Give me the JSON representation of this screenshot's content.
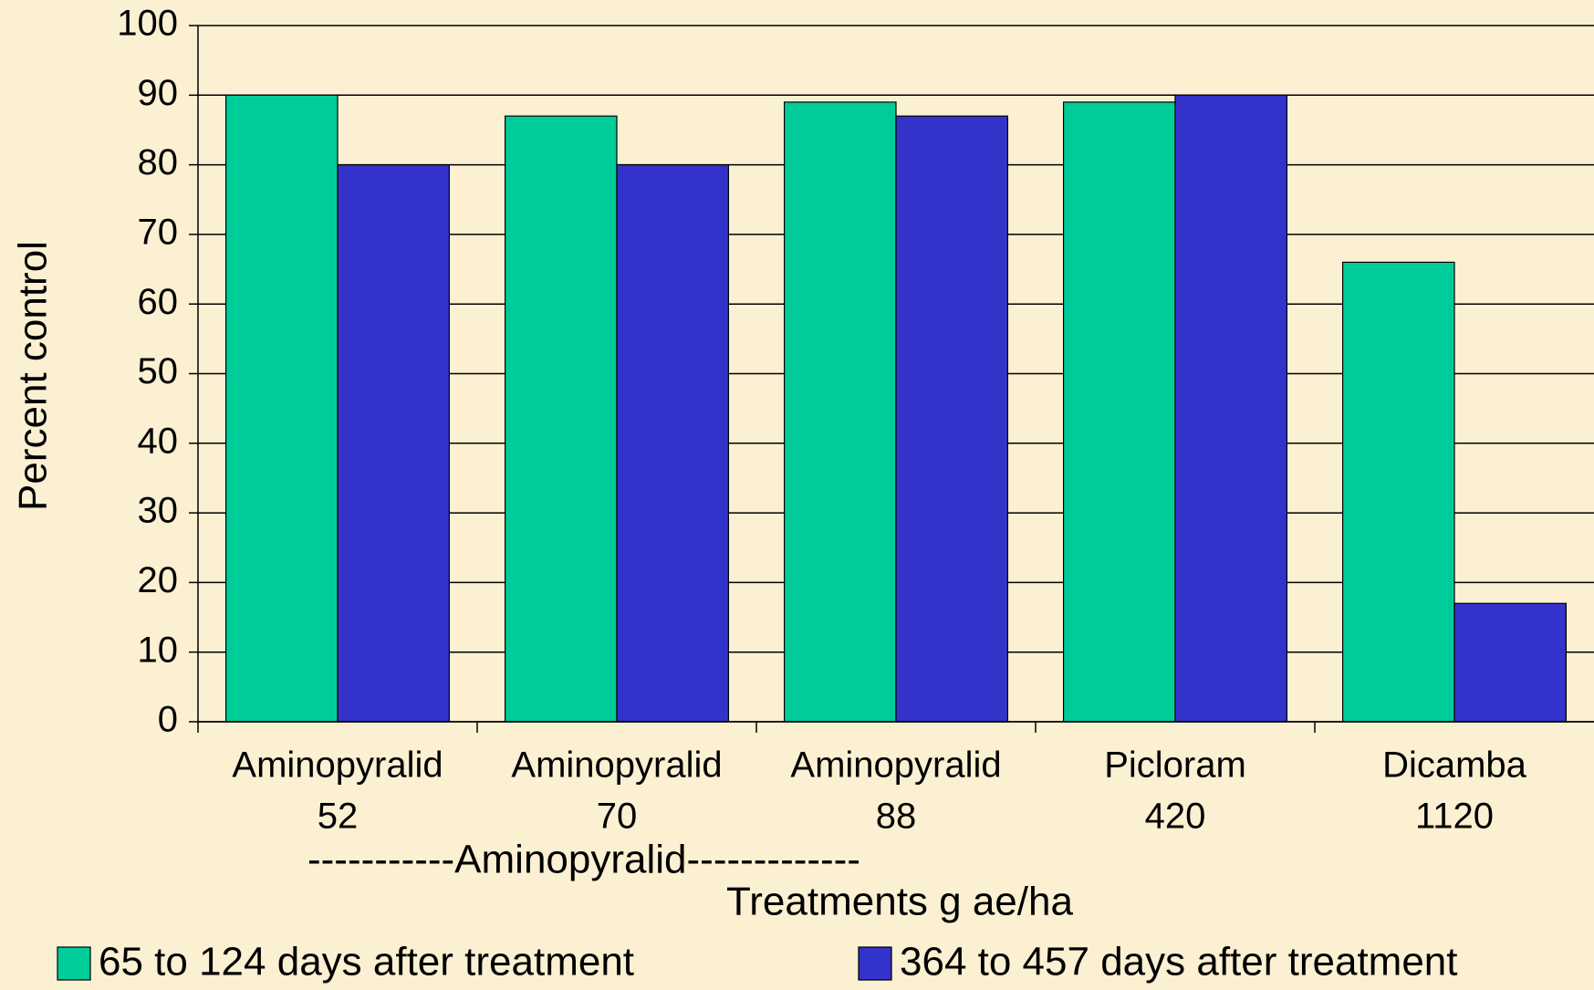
{
  "chart_data": {
    "type": "bar",
    "categories": [
      [
        "Aminopyralid",
        "52"
      ],
      [
        "Aminopyralid",
        "70"
      ],
      [
        "Aminopyralid",
        "88"
      ],
      [
        "Picloram",
        "420"
      ],
      [
        "Dicamba",
        "1120"
      ]
    ],
    "series": [
      {
        "name": "65 to 124 days after treatment",
        "color": "#00cc99",
        "values": [
          90,
          87,
          89,
          89,
          66
        ]
      },
      {
        "name": "364 to 457 days after treatment",
        "color": "#3333cc",
        "values": [
          80,
          80,
          87,
          90,
          17
        ]
      }
    ],
    "annotation": "-----------Aminopyralid-------------",
    "x_label": "Treatments g ae/ha",
    "y_label": "Percent control",
    "ylim": [
      0,
      100
    ],
    "yticks": [
      0,
      10,
      20,
      30,
      40,
      50,
      60,
      70,
      80,
      90,
      100
    ],
    "grid": true,
    "legend": "bottom"
  }
}
